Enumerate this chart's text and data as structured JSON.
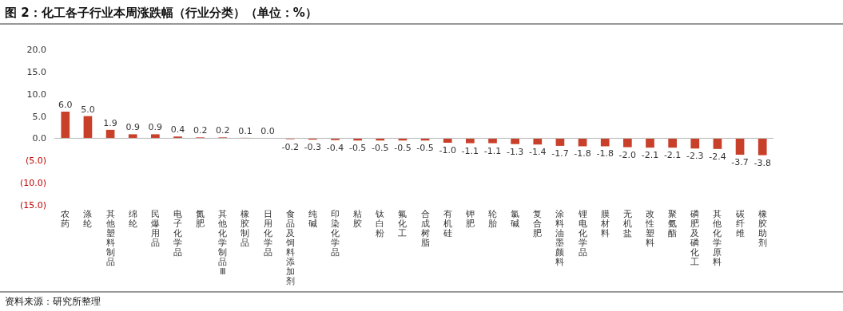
{
  "chart_data": {
    "type": "bar",
    "title": "图 2：化工各子行业本周涨跌幅（行业分类）（单位：%）",
    "categories": [
      "农药",
      "涤纶",
      "其他塑料制品",
      "绵纶",
      "民爆用品",
      "电子化学品",
      "氮肥",
      "其他化学制品Ⅲ",
      "橡胶制品",
      "日用化学品",
      "食品及饲料添加剂",
      "纯碱",
      "印染化学品",
      "粘胶",
      "钛白粉",
      "氟化工",
      "合成树脂",
      "有机硅",
      "钾肥",
      "轮胎",
      "氯碱",
      "复合肥",
      "涂料油墨颜料",
      "锂电化学品",
      "膜材料",
      "无机盐",
      "改性塑料",
      "聚氨酯",
      "磷肥及磷化工",
      "其他化学原料",
      "碳纤维",
      "橡胶助剂"
    ],
    "values": [
      6.0,
      5.0,
      1.9,
      0.9,
      0.9,
      0.4,
      0.2,
      0.2,
      0.1,
      0.0,
      -0.2,
      -0.3,
      -0.4,
      -0.5,
      -0.5,
      -0.5,
      -0.5,
      -1.0,
      -1.1,
      -1.1,
      -1.3,
      -1.4,
      -1.7,
      -1.8,
      -1.8,
      -2.0,
      -2.1,
      -2.1,
      -2.3,
      -2.4,
      -3.7,
      -3.8
    ],
    "value_labels": [
      "6.0",
      "5.0",
      "1.9",
      "0.9",
      "0.9",
      "0.4",
      "0.2",
      "0.2",
      "0.1",
      "0.0",
      "-0.2",
      "-0.3",
      "-0.4",
      "-0.5",
      "-0.5",
      "-0.5",
      "-0.5",
      "-1.0",
      "-1.1",
      "-1.1",
      "-1.3",
      "-1.4",
      "-1.7",
      "-1.8",
      "-1.8",
      "-2.0",
      "-2.1",
      "-2.1",
      "-2.3",
      "-2.4",
      "-3.7",
      "-3.8"
    ],
    "color": "#c9402a",
    "ylim": [
      -15,
      20
    ],
    "yticks": [
      {
        "value": 20,
        "label": "20.0"
      },
      {
        "value": 15,
        "label": "15.0"
      },
      {
        "value": 10,
        "label": "10.0"
      },
      {
        "value": 5,
        "label": "5.0"
      },
      {
        "value": 0,
        "label": "0.0"
      },
      {
        "value": -5,
        "label": "(5.0)"
      },
      {
        "value": -10,
        "label": "(10.0)"
      },
      {
        "value": -15,
        "label": "(15.0)"
      }
    ],
    "annotations": [
      "资料来源：研究所整理"
    ]
  }
}
